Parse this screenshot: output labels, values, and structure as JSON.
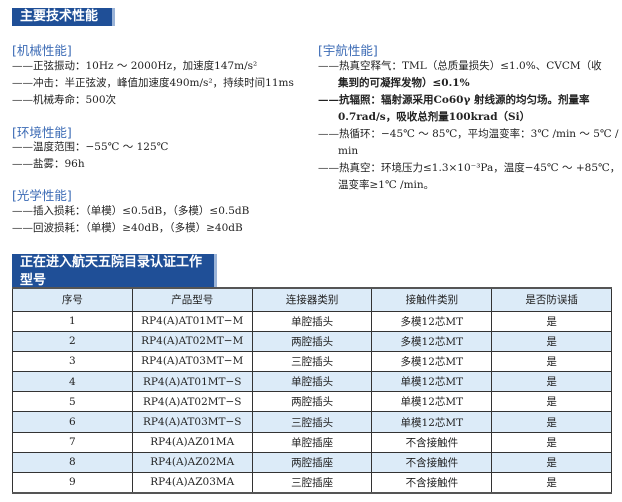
{
  "banner1": "主要技术性能",
  "mechanical": {
    "title": "[机械性能]",
    "items": [
      "——正弦振动：10Hz ～ 2000Hz，加速度147m/s²",
      "——冲击：半正弦波，峰值加速度490m/s²，持续时间11ms",
      "——机械寿命：500次"
    ]
  },
  "environment": {
    "title": "[环境性能]",
    "items": [
      "——温度范围：−55℃ ～ 125℃",
      "——盐雾：96h"
    ]
  },
  "optical": {
    "title": "[光学性能]",
    "items": [
      "——插入损耗：（单模）≤0.5dB，（多模）≤0.5dB",
      "——回波损耗：（单模）≥40dB，（多模）≥40dB"
    ]
  },
  "aerospace": {
    "title": "[宇航性能]",
    "lines": [
      "——热真空释气：TML（总质量损失）≤1.0%、CVCM（收",
      "集到的可凝挥发物）≤0.1%",
      "——抗辐照：辐射源采用Co60γ 射线源的均匀场。剂量率",
      "0.7rad/s，吸收总剂量100krad（Si）",
      "——热循环：−45℃ ～ 85℃，平均温变率：3℃ /min ～ 5℃ /",
      "min",
      "——热真空：环境压力≤1.3×10⁻³Pa，温度−45℃ ～ +85℃，",
      "温变率≥1℃ /min。"
    ]
  },
  "banner2": "正在进入航天五院目录认证工作型号",
  "table": {
    "headers": [
      "序号",
      "产品型号",
      "连接器类别",
      "接触件类别",
      "是否防误插"
    ],
    "rows": [
      [
        "1",
        "RP4(A)AT01MT−M",
        "单腔插头",
        "多模12芯MT",
        "是"
      ],
      [
        "2",
        "RP4(A)AT02MT−M",
        "两腔插头",
        "多模12芯MT",
        "是"
      ],
      [
        "3",
        "RP4(A)AT03MT−M",
        "三腔插头",
        "多模12芯MT",
        "是"
      ],
      [
        "4",
        "RP4(A)AT01MT−S",
        "单腔插头",
        "单模12芯MT",
        "是"
      ],
      [
        "5",
        "RP4(A)AT02MT−S",
        "两腔插头",
        "单模12芯MT",
        "是"
      ],
      [
        "6",
        "RP4(A)AT03MT−S",
        "三腔插头",
        "单模12芯MT",
        "是"
      ],
      [
        "7",
        "RP4(A)AZ01MA",
        "单腔插座",
        "不含接触件",
        "是"
      ],
      [
        "8",
        "RP4(A)AZ02MA",
        "两腔插座",
        "不含接触件",
        "是"
      ],
      [
        "9",
        "RP4(A)AZ03MA",
        "三腔插座",
        "不含接触件",
        "是"
      ]
    ]
  }
}
